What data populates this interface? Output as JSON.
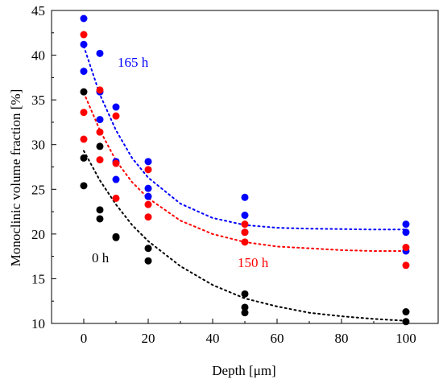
{
  "chart_data": {
    "type": "scatter",
    "title": "",
    "xlabel": "Depth [μm]",
    "ylabel": "Monoclinic volume fraction [%]",
    "xlim": [
      -10,
      110
    ],
    "ylim": [
      10,
      45
    ],
    "xticks": [
      0,
      20,
      40,
      60,
      80,
      100
    ],
    "yticks": [
      10,
      15,
      20,
      25,
      30,
      35,
      40,
      45
    ],
    "grid": false,
    "legend": "none",
    "series": [
      {
        "label": "165 h",
        "color": "#0000ff",
        "points": [
          [
            0,
            44.1
          ],
          [
            0,
            41.2
          ],
          [
            0,
            38.2
          ],
          [
            5,
            40.2
          ],
          [
            5,
            35.9
          ],
          [
            5,
            32.8
          ],
          [
            10,
            34.2
          ],
          [
            10,
            28.1
          ],
          [
            10,
            26.1
          ],
          [
            20,
            28.1
          ],
          [
            20,
            25.1
          ],
          [
            20,
            24.2
          ],
          [
            50,
            24.1
          ],
          [
            50,
            22.1
          ],
          [
            50,
            20.2
          ],
          [
            100,
            21.1
          ],
          [
            100,
            20.2
          ],
          [
            100,
            18.1
          ]
        ],
        "fit": [
          [
            0,
            41.0
          ],
          [
            5,
            35.6
          ],
          [
            10,
            31.6
          ],
          [
            15,
            28.5
          ],
          [
            20,
            26.3
          ],
          [
            30,
            23.4
          ],
          [
            40,
            21.8
          ],
          [
            50,
            21.0
          ],
          [
            60,
            20.7
          ],
          [
            70,
            20.6
          ],
          [
            80,
            20.55
          ],
          [
            90,
            20.5
          ],
          [
            100,
            20.5
          ]
        ]
      },
      {
        "label": "150 h",
        "color": "#ff0000",
        "points": [
          [
            0,
            42.3
          ],
          [
            0,
            33.6
          ],
          [
            0,
            30.6
          ],
          [
            5,
            36.1
          ],
          [
            5,
            31.4
          ],
          [
            5,
            28.3
          ],
          [
            10,
            33.2
          ],
          [
            10,
            27.9
          ],
          [
            10,
            24.0
          ],
          [
            20,
            27.2
          ],
          [
            20,
            23.3
          ],
          [
            20,
            21.9
          ],
          [
            50,
            21.1
          ],
          [
            50,
            20.2
          ],
          [
            50,
            19.1
          ],
          [
            100,
            18.5
          ],
          [
            100,
            16.5
          ]
        ],
        "fit": [
          [
            0,
            35.8
          ],
          [
            5,
            31.6
          ],
          [
            10,
            28.2
          ],
          [
            15,
            25.8
          ],
          [
            20,
            24.0
          ],
          [
            30,
            21.5
          ],
          [
            40,
            20.0
          ],
          [
            50,
            19.1
          ],
          [
            60,
            18.6
          ],
          [
            70,
            18.4
          ],
          [
            80,
            18.2
          ],
          [
            90,
            18.1
          ],
          [
            100,
            18.1
          ]
        ]
      },
      {
        "label": "0 h",
        "color": "#000000",
        "points": [
          [
            0,
            35.9
          ],
          [
            0,
            28.5
          ],
          [
            0,
            25.4
          ],
          [
            5,
            29.8
          ],
          [
            5,
            22.7
          ],
          [
            5,
            21.7
          ],
          [
            10,
            19.7
          ],
          [
            10,
            19.6
          ],
          [
            20,
            18.4
          ],
          [
            20,
            17.0
          ],
          [
            50,
            13.3
          ],
          [
            50,
            11.8
          ],
          [
            50,
            11.2
          ],
          [
            100,
            11.3
          ],
          [
            100,
            10.2
          ]
        ],
        "fit": [
          [
            0,
            29.3
          ],
          [
            5,
            26.0
          ],
          [
            10,
            23.3
          ],
          [
            15,
            21.0
          ],
          [
            20,
            19.2
          ],
          [
            30,
            16.4
          ],
          [
            40,
            14.3
          ],
          [
            50,
            12.8
          ],
          [
            60,
            11.9
          ],
          [
            70,
            11.2
          ],
          [
            80,
            10.8
          ],
          [
            90,
            10.5
          ],
          [
            100,
            10.3
          ]
        ]
      }
    ]
  }
}
